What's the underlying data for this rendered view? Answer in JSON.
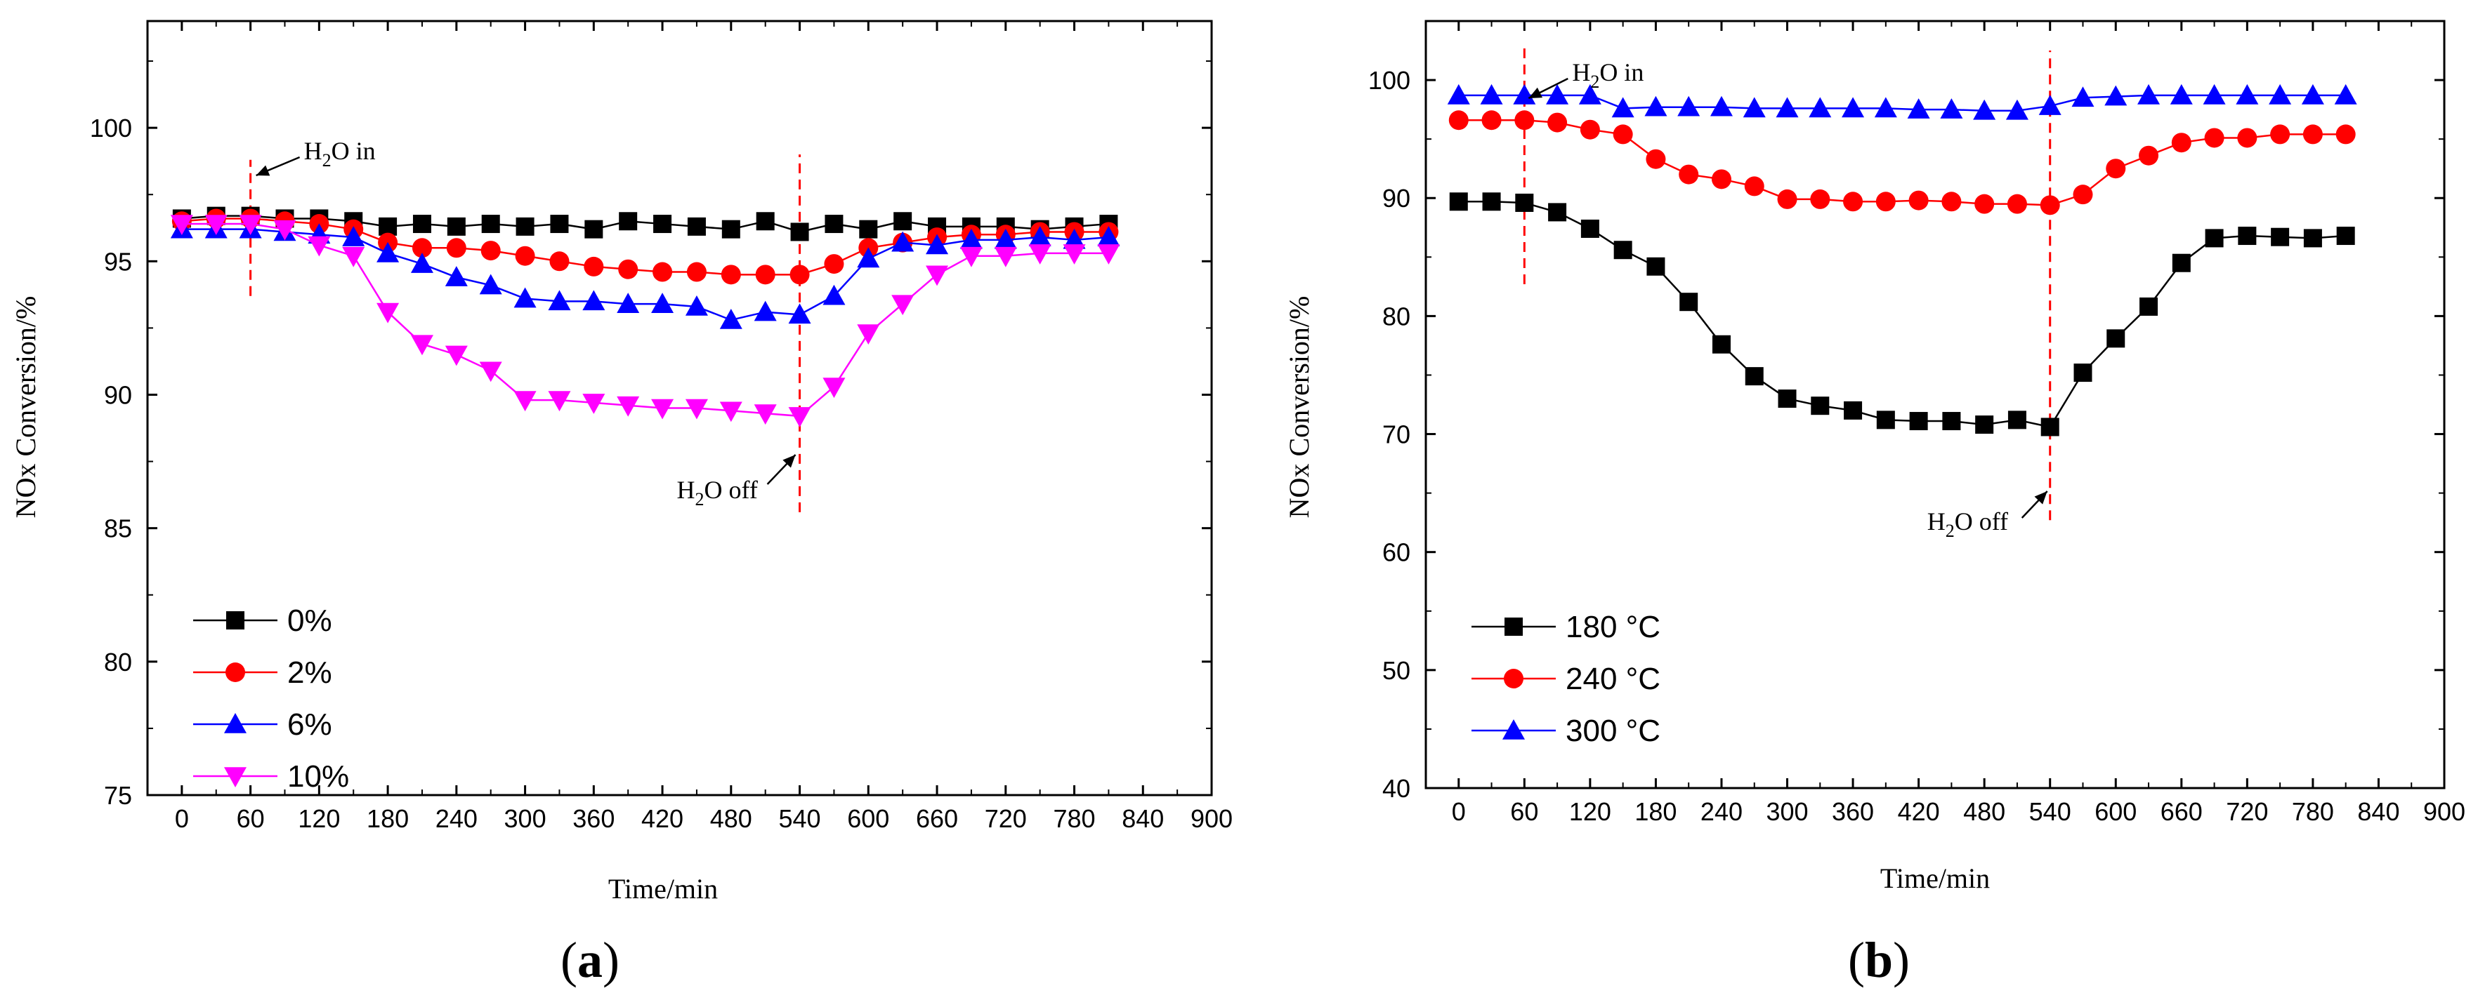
{
  "chart_data": [
    {
      "type": "line",
      "panel_label": "a",
      "xlabel": "Time/min",
      "ylabel": "NOx Conversion/%",
      "xlim": [
        -30,
        900
      ],
      "ylim": [
        75,
        104
      ],
      "xticks": [
        0,
        60,
        120,
        180,
        240,
        300,
        360,
        420,
        480,
        540,
        600,
        660,
        720,
        780,
        840,
        900
      ],
      "yticks": [
        75,
        80,
        85,
        90,
        95,
        100
      ],
      "legend_position": "bottom-left",
      "annotations": {
        "water_in": {
          "label_main": "H",
          "label_sub": "2",
          "label_rest": "O in",
          "x": 60,
          "y_from": 93.7,
          "y_to": 98.8
        },
        "water_off": {
          "label_main": "H",
          "label_sub": "2",
          "label_rest": "O off",
          "x": 540,
          "y_from": 85.6,
          "y_to": 99.0
        }
      },
      "x": [
        0,
        30,
        60,
        90,
        120,
        150,
        180,
        210,
        240,
        270,
        300,
        330,
        360,
        390,
        420,
        450,
        480,
        510,
        540,
        570,
        600,
        630,
        660,
        690,
        720,
        750,
        780,
        810
      ],
      "series": [
        {
          "name": "0%",
          "color": "#000000",
          "marker": "square",
          "values": [
            96.6,
            96.7,
            96.7,
            96.6,
            96.6,
            96.5,
            96.3,
            96.4,
            96.3,
            96.4,
            96.3,
            96.4,
            96.2,
            96.5,
            96.4,
            96.3,
            96.2,
            96.5,
            96.1,
            96.4,
            96.2,
            96.5,
            96.3,
            96.3,
            96.3,
            96.2,
            96.3,
            96.4
          ]
        },
        {
          "name": "2%",
          "color": "#ff0000",
          "marker": "circle",
          "values": [
            96.5,
            96.6,
            96.6,
            96.5,
            96.4,
            96.2,
            95.7,
            95.5,
            95.5,
            95.4,
            95.2,
            95.0,
            94.8,
            94.7,
            94.6,
            94.6,
            94.5,
            94.5,
            94.5,
            94.9,
            95.5,
            95.7,
            95.9,
            96.0,
            96.0,
            96.1,
            96.1,
            96.1
          ]
        },
        {
          "name": "6%",
          "color": "#0000ff",
          "marker": "triangle-up",
          "values": [
            96.2,
            96.2,
            96.2,
            96.1,
            96.0,
            95.9,
            95.3,
            94.9,
            94.4,
            94.1,
            93.6,
            93.5,
            93.5,
            93.4,
            93.4,
            93.3,
            92.8,
            93.1,
            93.0,
            93.7,
            95.1,
            95.7,
            95.6,
            95.8,
            95.8,
            95.9,
            95.8,
            95.9
          ]
        },
        {
          "name": "10%",
          "color": "#ff00ff",
          "marker": "triangle-down",
          "values": [
            96.4,
            96.4,
            96.4,
            96.2,
            95.6,
            95.2,
            93.1,
            91.9,
            91.5,
            90.9,
            89.8,
            89.8,
            89.7,
            89.6,
            89.5,
            89.5,
            89.4,
            89.3,
            89.2,
            90.3,
            92.3,
            93.4,
            94.5,
            95.2,
            95.2,
            95.3,
            95.3,
            95.3
          ]
        }
      ]
    },
    {
      "type": "line",
      "panel_label": "b",
      "xlabel": "Time/min",
      "ylabel": "NOx Conversion/%",
      "xlim": [
        -30,
        900
      ],
      "ylim": [
        40,
        105
      ],
      "xticks": [
        0,
        60,
        120,
        180,
        240,
        300,
        360,
        420,
        480,
        540,
        600,
        660,
        720,
        780,
        840,
        900
      ],
      "yticks": [
        40,
        50,
        60,
        70,
        80,
        90,
        100
      ],
      "legend_position": "bottom-left",
      "annotations": {
        "water_in": {
          "label_main": "H",
          "label_sub": "2",
          "label_rest": "O in",
          "x": 60,
          "y_from": 82.7,
          "y_to": 103.0
        },
        "water_off": {
          "label_main": "H",
          "label_sub": "2",
          "label_rest": "O off",
          "x": 540,
          "y_from": 62.7,
          "y_to": 102.5
        }
      },
      "x": [
        0,
        30,
        60,
        90,
        120,
        150,
        180,
        210,
        240,
        270,
        300,
        330,
        360,
        390,
        420,
        450,
        480,
        510,
        540,
        570,
        600,
        630,
        660,
        690,
        720,
        750,
        780,
        810
      ],
      "series": [
        {
          "name": "180 °C",
          "color": "#000000",
          "marker": "square",
          "values": [
            89.7,
            89.7,
            89.6,
            88.8,
            87.4,
            85.6,
            84.2,
            81.2,
            77.6,
            74.9,
            73.0,
            72.4,
            72.0,
            71.2,
            71.1,
            71.1,
            70.8,
            71.2,
            70.6,
            75.2,
            78.1,
            80.8,
            84.5,
            86.6,
            86.8,
            86.7,
            86.6,
            86.8
          ]
        },
        {
          "name": "240 °C",
          "color": "#ff0000",
          "marker": "circle",
          "values": [
            96.6,
            96.6,
            96.6,
            96.4,
            95.8,
            95.4,
            93.3,
            92.0,
            91.6,
            91.0,
            89.9,
            89.9,
            89.7,
            89.7,
            89.8,
            89.7,
            89.5,
            89.5,
            89.4,
            90.3,
            92.5,
            93.6,
            94.7,
            95.1,
            95.1,
            95.4,
            95.4,
            95.4
          ]
        },
        {
          "name": "300 °C",
          "color": "#0000ff",
          "marker": "triangle-up",
          "values": [
            98.7,
            98.7,
            98.7,
            98.7,
            98.7,
            97.6,
            97.7,
            97.7,
            97.7,
            97.6,
            97.6,
            97.6,
            97.6,
            97.6,
            97.5,
            97.5,
            97.4,
            97.4,
            97.8,
            98.5,
            98.6,
            98.7,
            98.7,
            98.7,
            98.7,
            98.7,
            98.7,
            98.7
          ]
        }
      ]
    }
  ]
}
